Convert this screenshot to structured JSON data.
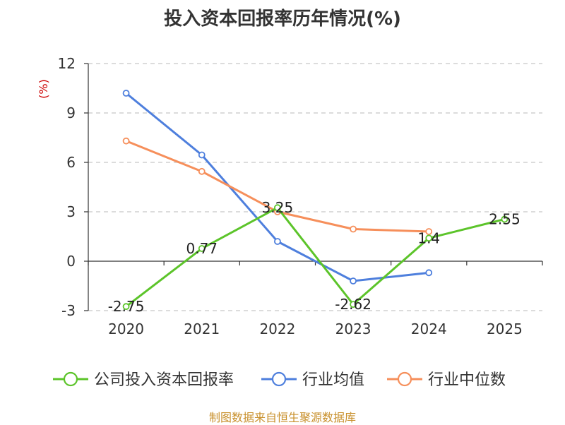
{
  "chart_data": {
    "type": "line",
    "title": "投入资本回报率历年情况(%)",
    "ylabel": "(%)",
    "categories": [
      "2020",
      "2021",
      "2022",
      "2023",
      "2024",
      "2025"
    ],
    "ylim": [
      -3,
      12
    ],
    "yticks": [
      -3,
      0,
      3,
      6,
      9,
      12
    ],
    "grid": true,
    "legend_position": "bottom",
    "series": [
      {
        "name": "公司投入资本回报率",
        "color": "#5cc42a",
        "values": [
          -2.75,
          0.77,
          3.25,
          -2.62,
          1.4,
          2.55
        ],
        "labels": [
          "-2.75",
          "0.77",
          "3.25",
          "-2.62",
          "1.4",
          "2.55"
        ]
      },
      {
        "name": "行业均值",
        "color": "#4e7fdd",
        "values": [
          10.2,
          6.45,
          1.2,
          -1.2,
          -0.7,
          null
        ]
      },
      {
        "name": "行业中位数",
        "color": "#f68f5b",
        "values": [
          7.3,
          5.45,
          3.0,
          1.95,
          1.8,
          null
        ]
      }
    ]
  },
  "source": "制图数据来自恒生聚源数据库"
}
